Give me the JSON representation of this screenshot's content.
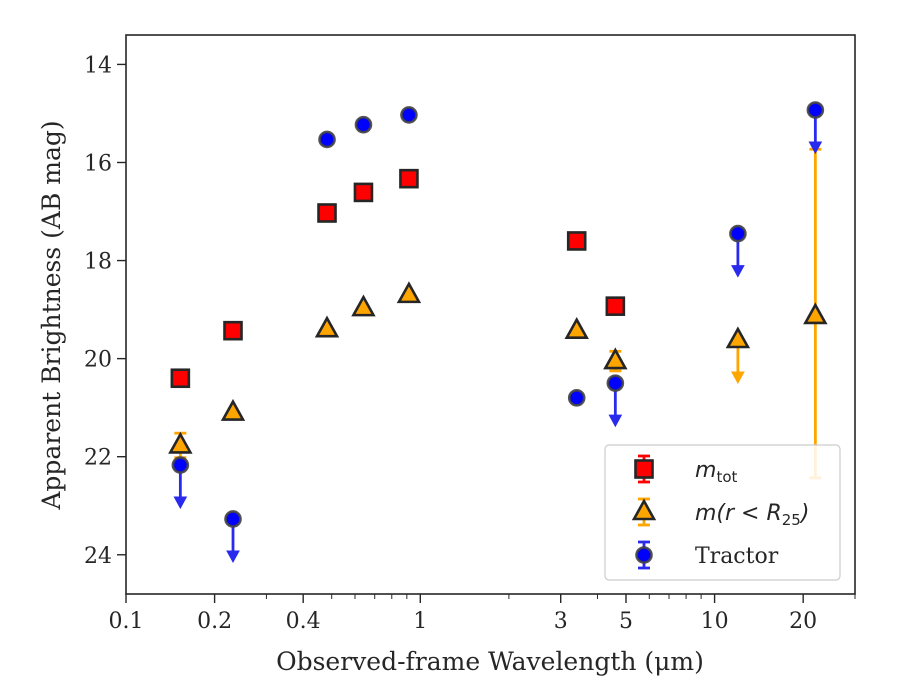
{
  "chart_data": {
    "type": "scatter",
    "title": "",
    "xlabel": "Observed-frame Wavelength (μm)",
    "ylabel": "Apparent Brightness (AB mag)",
    "x_scale": "log",
    "xlim": [
      0.1,
      30
    ],
    "ylim": [
      24.8,
      13.4
    ],
    "y_inverted": true,
    "grid": false,
    "legend_position": "lower-right",
    "x_ticks": [
      {
        "value": 0.1,
        "label": "0.1"
      },
      {
        "value": 0.2,
        "label": "0.2"
      },
      {
        "value": 0.4,
        "label": "0.4"
      },
      {
        "value": 1,
        "label": "1"
      },
      {
        "value": 3,
        "label": "3"
      },
      {
        "value": 5,
        "label": "5"
      },
      {
        "value": 10,
        "label": "10"
      },
      {
        "value": 20,
        "label": "20"
      }
    ],
    "y_ticks": [
      {
        "value": 14,
        "label": "14"
      },
      {
        "value": 16,
        "label": "16"
      },
      {
        "value": 18,
        "label": "18"
      },
      {
        "value": 20,
        "label": "20"
      },
      {
        "value": 22,
        "label": "22"
      },
      {
        "value": 24,
        "label": "24"
      }
    ],
    "series": [
      {
        "key": "mtot",
        "legend_main": "m",
        "legend_sub": "tot",
        "marker": "square",
        "color": "#ff0000",
        "edge_color": "#262626",
        "points": [
          {
            "x": 0.153,
            "y": 20.4
          },
          {
            "x": 0.231,
            "y": 19.43
          },
          {
            "x": 0.482,
            "y": 17.03
          },
          {
            "x": 0.641,
            "y": 16.61
          },
          {
            "x": 0.915,
            "y": 16.33
          },
          {
            "x": 3.4,
            "y": 17.6
          },
          {
            "x": 4.6,
            "y": 18.93
          }
        ]
      },
      {
        "key": "mR25",
        "legend_main": "m(r < R",
        "legend_sub": "25",
        "legend_end": ")",
        "marker": "triangle",
        "color": "#ffa500",
        "edge_color": "#262626",
        "points": [
          {
            "x": 0.153,
            "y": 21.77,
            "err": 0.25
          },
          {
            "x": 0.231,
            "y": 21.1
          },
          {
            "x": 0.482,
            "y": 19.4
          },
          {
            "x": 0.641,
            "y": 18.97
          },
          {
            "x": 0.915,
            "y": 18.7
          },
          {
            "x": 3.4,
            "y": 19.43
          },
          {
            "x": 4.6,
            "y": 20.05,
            "err": 0.2
          },
          {
            "x": 12.0,
            "y": 19.62,
            "upper_limit": true
          },
          {
            "x": 22.0,
            "y": 19.13,
            "err_low": 3.4,
            "err_high": 3.3
          }
        ]
      },
      {
        "key": "tractor",
        "legend_main": "Tractor",
        "marker": "circle",
        "color": "#0000ff",
        "edge_color": "#444444",
        "points": [
          {
            "x": 0.153,
            "y": 22.17,
            "upper_limit": true
          },
          {
            "x": 0.231,
            "y": 23.27,
            "upper_limit": true
          },
          {
            "x": 0.482,
            "y": 15.53
          },
          {
            "x": 0.641,
            "y": 15.23
          },
          {
            "x": 0.915,
            "y": 15.03
          },
          {
            "x": 3.4,
            "y": 20.8
          },
          {
            "x": 4.6,
            "y": 20.5,
            "upper_limit": true
          },
          {
            "x": 12.0,
            "y": 17.45,
            "upper_limit": true
          },
          {
            "x": 22.0,
            "y": 14.93,
            "upper_limit": true
          }
        ]
      }
    ]
  }
}
